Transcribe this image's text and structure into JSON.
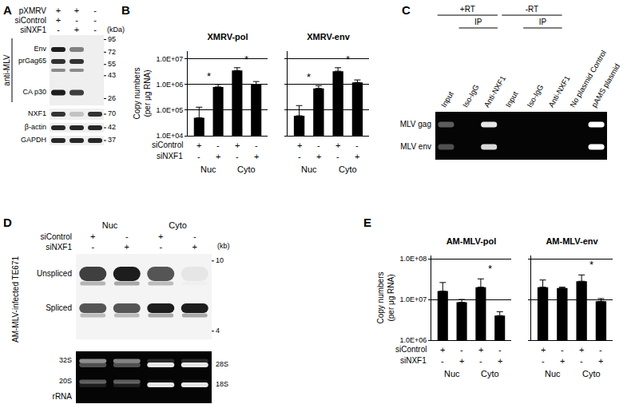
{
  "letters": [
    "A",
    "B",
    "C",
    "D",
    "E"
  ],
  "chart_data": [
    {
      "type": "bar",
      "title": "XMRV-pol",
      "categories": [
        null,
        null,
        null,
        null
      ],
      "values": [
        50000,
        800000,
        3500000,
        1000000
      ],
      "errors": [
        80000,
        200000,
        1000000,
        300000
      ],
      "color": "#000000",
      "log": "y",
      "ylim": [
        10000,
        20000000
      ],
      "yticks": [
        {
          "value": 10000,
          "label": "1.0E+04"
        },
        {
          "value": 100000,
          "label": "1.0E+05"
        },
        {
          "value": 1000000,
          "label": "1.0E+06"
        },
        {
          "value": 10000000,
          "label": "1.0E+07"
        }
      ],
      "grid": true,
      "tick_labels": "y",
      "ylabel": [
        "Copy numbers",
        "(per μg RNA)"
      ],
      "conditions": [
        {
          "label": "siControl",
          "signs": [
            "+",
            "-",
            "+",
            "-"
          ]
        },
        {
          "label": "siNXF1",
          "signs": [
            "-",
            "+",
            "-",
            "+"
          ]
        }
      ],
      "groups": [
        {
          "label": "Nuc",
          "categories": [
            0,
            1
          ]
        },
        {
          "label": "Cyto",
          "categories": [
            2,
            3
          ]
        }
      ],
      "significance": [
        {
          "categories": [
            0,
            1
          ],
          "label": "*"
        },
        {
          "categories": [
            2,
            3
          ],
          "label": "*"
        }
      ]
    },
    {
      "type": "bar",
      "title": "XMRV-env",
      "categories": [
        null,
        null,
        null,
        null
      ],
      "values": [
        60000,
        700000,
        3300000,
        1200000
      ],
      "errors": [
        90000,
        200000,
        1200000,
        300000
      ],
      "color": "#000000",
      "log": "y",
      "ylim": [
        10000,
        20000000
      ],
      "yticks": [
        {
          "value": 10000,
          "label": "1.0E+04"
        },
        {
          "value": 100000,
          "label": "1.0E+05"
        },
        {
          "value": 1000000,
          "label": "1.0E+06"
        },
        {
          "value": 10000000,
          "label": "1.0E+07"
        }
      ],
      "grid": true,
      "tick_labels": false,
      "conditions": [
        {
          "signs": [
            "+",
            "-",
            "+",
            "-"
          ]
        },
        {
          "signs": [
            "-",
            "+",
            "-",
            "+"
          ]
        }
      ],
      "groups": [
        {
          "label": "Nuc",
          "categories": [
            0,
            1
          ]
        },
        {
          "label": "Cyto",
          "categories": [
            2,
            3
          ]
        }
      ],
      "significance": [
        {
          "categories": [
            0,
            1
          ],
          "label": "*"
        },
        {
          "categories": [
            2,
            3
          ],
          "label": "*"
        }
      ]
    },
    {
      "type": "bar",
      "title": "AM-MLV-pol",
      "categories": [
        null,
        null,
        null,
        null
      ],
      "values": [
        16000000,
        8500000,
        20000000,
        4000000
      ],
      "errors": [
        10000000,
        1500000,
        12000000,
        1000000
      ],
      "color": "#000000",
      "log": "y",
      "ylim": [
        1000000,
        120000000
      ],
      "yticks": [
        {
          "value": 1000000,
          "label": "1.0E+06"
        },
        {
          "value": 10000000,
          "label": "1.0E+07"
        },
        {
          "value": 100000000,
          "label": "1.0E+08"
        }
      ],
      "grid": true,
      "tick_labels": "y",
      "ylabel": [
        "Copy numbers",
        "(per μg RNA)"
      ],
      "conditions": [
        {
          "label": "siControl",
          "signs": [
            "+",
            "-",
            "+",
            "-"
          ]
        },
        {
          "label": "siNXF1",
          "signs": [
            "-",
            "+",
            "-",
            "+"
          ]
        }
      ],
      "groups": [
        {
          "label": "Nuc",
          "categories": [
            0,
            1
          ]
        },
        {
          "label": "Cyto",
          "categories": [
            2,
            3
          ]
        }
      ],
      "significance": [
        {
          "categories": [
            2,
            3
          ],
          "label": "*"
        }
      ]
    },
    {
      "type": "bar",
      "title": "AM-MLV-env",
      "categories": [
        null,
        null,
        null,
        null
      ],
      "values": [
        20000000,
        19000000,
        28000000,
        9000000
      ],
      "errors": [
        10000000,
        1000000,
        12000000,
        1500000
      ],
      "color": "#000000",
      "log": "y",
      "ylim": [
        1000000,
        120000000
      ],
      "yticks": [
        {
          "value": 1000000,
          "label": "1.0E+06"
        },
        {
          "value": 10000000,
          "label": "1.0E+07"
        },
        {
          "value": 100000000,
          "label": "1.0E+08"
        }
      ],
      "grid": true,
      "tick_labels": false,
      "conditions": [
        {
          "signs": [
            "+",
            "-",
            "+",
            "-"
          ]
        },
        {
          "signs": [
            "-",
            "+",
            "-",
            "+"
          ]
        }
      ],
      "groups": [
        {
          "label": "Nuc",
          "categories": [
            0,
            1
          ]
        },
        {
          "label": "Cyto",
          "categories": [
            2,
            3
          ]
        }
      ],
      "significance": [
        {
          "categories": [
            2,
            3
          ],
          "label": "*"
        }
      ]
    }
  ],
  "panels": {
    "A": {
      "conditions": [
        {
          "label": "pXMRV",
          "signs": [
            "+",
            "+",
            "-"
          ]
        },
        {
          "label": "siControl",
          "signs": [
            "+",
            "-",
            "-"
          ]
        },
        {
          "label": "siNXF1",
          "signs": [
            "-",
            "+",
            "-"
          ]
        }
      ],
      "size_unit": "(kDa)",
      "blots": [
        {
          "label": "anti-MLV",
          "bands": [
            "Env",
            "prGag65",
            "CA p30"
          ],
          "markers": [
            95,
            72,
            55,
            43,
            26
          ]
        },
        {
          "label": "NXF1",
          "markers": [
            70
          ]
        },
        {
          "label": "β-actin",
          "markers": [
            42
          ]
        },
        {
          "label": "GAPDH",
          "markers": [
            37
          ]
        }
      ]
    },
    "C": {
      "groups": [
        {
          "label": "+RT",
          "lanes": [
            0,
            1,
            2
          ],
          "sub": {
            "label": "IP",
            "lanes": [
              1,
              2
            ]
          }
        },
        {
          "label": "-RT",
          "lanes": [
            3,
            4,
            5
          ],
          "sub": {
            "label": "IP",
            "lanes": [
              4,
              5
            ]
          }
        }
      ],
      "lanes": [
        "Input",
        "Iso-IgG",
        "Anti-NXF1",
        "Input",
        "Iso-IgG",
        "Anti-NXF1",
        "No plasmid Control",
        "pAMS plasmid"
      ],
      "rows": [
        "MLV gag",
        "MLV env"
      ]
    },
    "D": {
      "cells": "AM-MLV-infected TE671",
      "groups": [
        {
          "label": "Nuc",
          "lanes": [
            0,
            1
          ]
        },
        {
          "label": "Cyto",
          "lanes": [
            2,
            3
          ]
        }
      ],
      "conditions": [
        {
          "label": "siControl",
          "signs": [
            "+",
            "-",
            "+",
            "-"
          ]
        },
        {
          "label": "siNXF1",
          "signs": [
            "-",
            "+",
            "-",
            "+"
          ]
        }
      ],
      "size_unit": "(kb)",
      "markers": [
        10,
        4
      ],
      "bands": [
        "Unspliced",
        "Spliced"
      ],
      "rrna": {
        "label": "rRNA",
        "left": [
          "32S",
          "20S"
        ],
        "right": [
          "28S",
          "18S"
        ]
      }
    }
  }
}
